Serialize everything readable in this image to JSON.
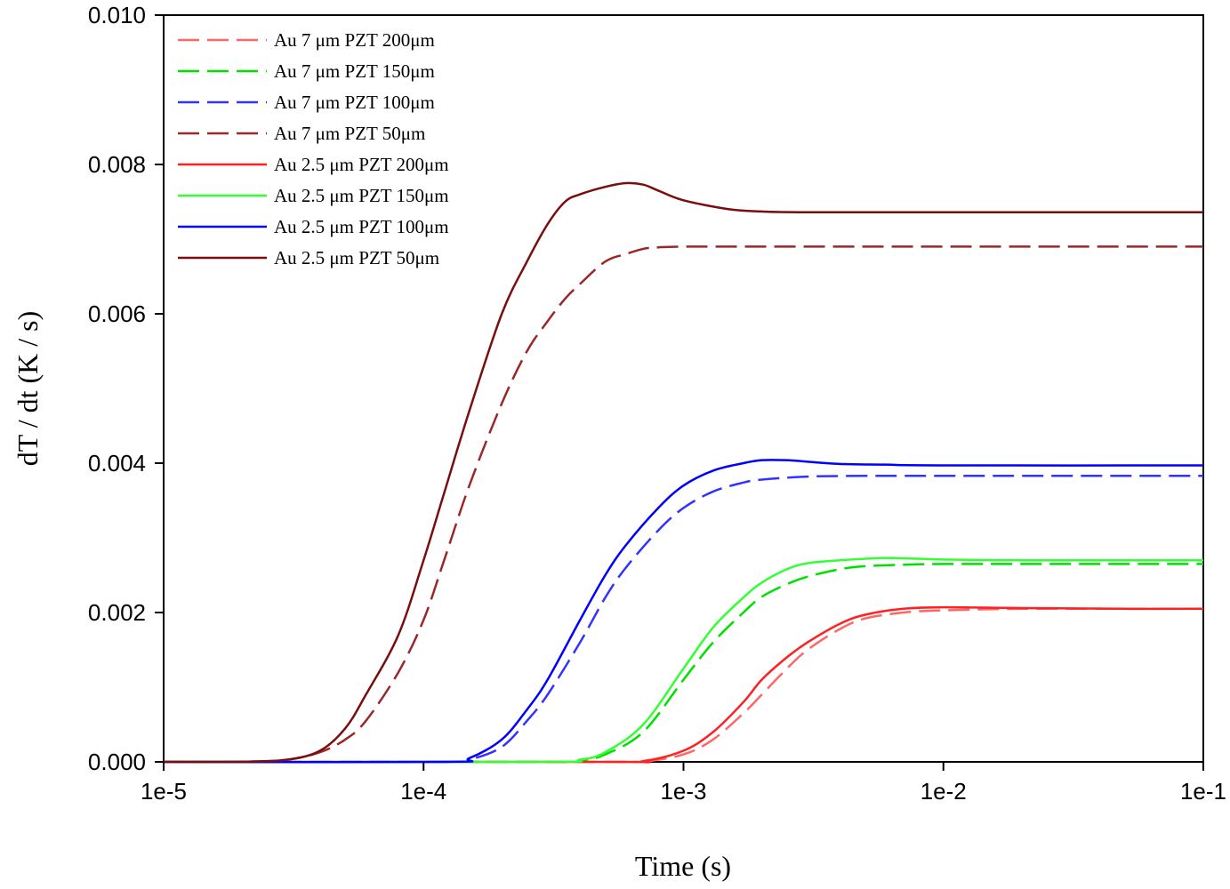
{
  "chart_data": {
    "type": "line",
    "xlabel": "Time (s)",
    "ylabel": "dT / dt (K / s)",
    "xscale": "log",
    "xlim": [
      1e-05,
      0.1
    ],
    "ylim": [
      0,
      0.01
    ],
    "x_ticks": [
      1e-05,
      0.0001,
      0.001,
      0.01,
      0.1
    ],
    "x_tick_labels": [
      "1e-5",
      "1e-4",
      "1e-3",
      "1e-2",
      "1e-1"
    ],
    "y_ticks": [
      0,
      0.002,
      0.004,
      0.006,
      0.008,
      0.01
    ],
    "y_tick_labels": [
      "0.000",
      "0.002",
      "0.004",
      "0.006",
      "0.008",
      "0.010"
    ],
    "grid": false,
    "legend_position": "top-left",
    "series": [
      {
        "name": "Au 7 μm   PZT 200μm",
        "color": "#ff6666",
        "dash": "dashed",
        "x": [
          1e-05,
          0.0005,
          0.0007,
          0.001,
          0.0013,
          0.0017,
          0.002,
          0.0025,
          0.003,
          0.004,
          0.005,
          0.007,
          0.01,
          0.02,
          0.05,
          0.1
        ],
        "y": [
          0,
          0,
          5e-06,
          0.0001,
          0.0003,
          0.00065,
          0.0009,
          0.00125,
          0.0015,
          0.00178,
          0.00192,
          0.002,
          0.00203,
          0.00205,
          0.00205,
          0.00205
        ]
      },
      {
        "name": "Au 7 μm   PZT 150μm",
        "color": "#00e000",
        "dash": "dashed",
        "x": [
          1e-05,
          0.00028,
          0.0004,
          0.0005,
          0.0007,
          0.001,
          0.0013,
          0.0017,
          0.002,
          0.0025,
          0.003,
          0.004,
          0.005,
          0.007,
          0.01,
          0.03,
          0.1
        ],
        "y": [
          0,
          0,
          2e-05,
          0.0001,
          0.0004,
          0.0011,
          0.0016,
          0.002,
          0.00221,
          0.00238,
          0.00248,
          0.00258,
          0.00262,
          0.00264,
          0.00265,
          0.00265,
          0.00265
        ]
      },
      {
        "name": "Au 7 μm   PZT 100μm",
        "color": "#3333ff",
        "dash": "dashed",
        "x": [
          1e-05,
          0.00012,
          0.00015,
          0.0002,
          0.00025,
          0.0003,
          0.0004,
          0.0005,
          0.0006,
          0.0008,
          0.001,
          0.0013,
          0.0017,
          0.002,
          0.003,
          0.005,
          0.01,
          0.1
        ],
        "y": [
          0,
          0,
          3e-05,
          0.0002,
          0.00055,
          0.0009,
          0.0016,
          0.0022,
          0.0026,
          0.0031,
          0.0034,
          0.00362,
          0.00374,
          0.00378,
          0.00382,
          0.00383,
          0.00383,
          0.00383
        ]
      },
      {
        "name": "Au 7 μm   PZT 50μm",
        "color": "#9b2828",
        "dash": "dashed",
        "x": [
          1e-05,
          2e-05,
          3e-05,
          4e-05,
          5e-05,
          6e-05,
          8e-05,
          0.0001,
          0.00012,
          0.00015,
          0.0002,
          0.00025,
          0.0003,
          0.00035,
          0.0004,
          0.0005,
          0.0006,
          0.0007,
          0.0008,
          0.001,
          0.002,
          0.01,
          0.1
        ],
        "y": [
          0,
          3e-06,
          3e-05,
          0.00013,
          0.0003,
          0.00055,
          0.0012,
          0.0019,
          0.0027,
          0.0037,
          0.0048,
          0.0055,
          0.0059,
          0.0062,
          0.0064,
          0.0067,
          0.0068,
          0.00687,
          0.00689,
          0.0069,
          0.0069,
          0.0069,
          0.0069
        ]
      },
      {
        "name": "Au 2.5 μm   PZT 200μm",
        "color": "#ff2020",
        "dash": "solid",
        "x": [
          1e-05,
          0.0005,
          0.0007,
          0.001,
          0.0013,
          0.0017,
          0.002,
          0.0025,
          0.003,
          0.004,
          0.005,
          0.007,
          0.01,
          0.02,
          0.05,
          0.1
        ],
        "y": [
          0,
          0,
          1e-05,
          0.00015,
          0.0004,
          0.0008,
          0.0011,
          0.0014,
          0.0016,
          0.00185,
          0.00197,
          0.00205,
          0.00207,
          0.00206,
          0.00205,
          0.00205
        ]
      },
      {
        "name": "Au 2.5 μm   PZT 150μm",
        "color": "#33ff33",
        "dash": "solid",
        "x": [
          1e-05,
          0.00028,
          0.0004,
          0.0005,
          0.0007,
          0.001,
          0.0013,
          0.0017,
          0.002,
          0.0025,
          0.003,
          0.004,
          0.005,
          0.006,
          0.008,
          0.01,
          0.02,
          0.1
        ],
        "y": [
          0,
          0,
          3e-05,
          0.00013,
          0.0005,
          0.00125,
          0.0018,
          0.0022,
          0.0024,
          0.00258,
          0.00266,
          0.0027,
          0.00272,
          0.00273,
          0.00272,
          0.00271,
          0.0027,
          0.0027
        ]
      },
      {
        "name": "Au 2.5 μm   PZT 100μm",
        "color": "#0000ff",
        "dash": "solid",
        "x": [
          1e-05,
          0.00012,
          0.00015,
          0.0002,
          0.00025,
          0.0003,
          0.0004,
          0.0005,
          0.0006,
          0.0008,
          0.001,
          0.0013,
          0.0017,
          0.002,
          0.0025,
          0.003,
          0.004,
          0.006,
          0.01,
          0.1
        ],
        "y": [
          0,
          0,
          5e-05,
          0.0003,
          0.0007,
          0.0011,
          0.0019,
          0.0025,
          0.0029,
          0.0034,
          0.0037,
          0.0039,
          0.004,
          0.00404,
          0.00404,
          0.00402,
          0.00399,
          0.00398,
          0.00397,
          0.00397
        ]
      },
      {
        "name": "Au 2.5 μm   PZT 50μm",
        "color": "#7a0d0d",
        "dash": "solid",
        "x": [
          1e-05,
          2e-05,
          3e-05,
          4e-05,
          5e-05,
          6e-05,
          8e-05,
          0.0001,
          0.00012,
          0.00015,
          0.0002,
          0.00025,
          0.0003,
          0.00035,
          0.0004,
          0.0005,
          0.0006,
          0.0007,
          0.0008,
          0.001,
          0.0015,
          0.002,
          0.003,
          0.01,
          0.1
        ],
        "y": [
          0,
          3e-06,
          3e-05,
          0.00015,
          0.00045,
          0.0009,
          0.0017,
          0.0027,
          0.0036,
          0.0047,
          0.006,
          0.0067,
          0.0072,
          0.0075,
          0.0076,
          0.0077,
          0.00775,
          0.00773,
          0.00765,
          0.00752,
          0.0074,
          0.00737,
          0.00736,
          0.00736,
          0.00736
        ]
      }
    ]
  }
}
